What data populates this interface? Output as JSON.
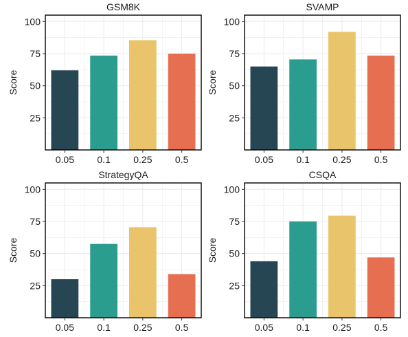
{
  "chart_data": [
    {
      "type": "bar",
      "title": "GSM8K",
      "ylabel": "Score",
      "xlabel": "",
      "categories": [
        "0.05",
        "0.1",
        "0.25",
        "0.5"
      ],
      "values": [
        62,
        73.5,
        85.5,
        75
      ],
      "ylim": [
        0,
        105
      ],
      "yticks": [
        "25",
        "50",
        "75",
        "100"
      ],
      "grid": true
    },
    {
      "type": "bar",
      "title": "SVAMP",
      "ylabel": "Score",
      "xlabel": "",
      "categories": [
        "0.05",
        "0.1",
        "0.25",
        "0.5"
      ],
      "values": [
        65,
        70.5,
        92,
        73.5
      ],
      "ylim": [
        0,
        105
      ],
      "yticks": [
        "25",
        "50",
        "75",
        "100"
      ],
      "grid": true
    },
    {
      "type": "bar",
      "title": "StrategyQA",
      "ylabel": "Score",
      "xlabel": "",
      "categories": [
        "0.05",
        "0.1",
        "0.25",
        "0.5"
      ],
      "values": [
        30,
        57.5,
        70.5,
        34
      ],
      "ylim": [
        0,
        105
      ],
      "yticks": [
        "25",
        "50",
        "75",
        "100"
      ],
      "grid": true
    },
    {
      "type": "bar",
      "title": "CSQA",
      "ylabel": "Score",
      "xlabel": "",
      "categories": [
        "0.05",
        "0.1",
        "0.25",
        "0.5"
      ],
      "values": [
        44,
        75,
        79.5,
        47
      ],
      "ylim": [
        0,
        105
      ],
      "yticks": [
        "25",
        "50",
        "75",
        "100"
      ],
      "grid": true
    }
  ],
  "colors": {
    "bars": [
      "#264653",
      "#2a9d8f",
      "#e9c46a",
      "#e76f51"
    ],
    "grid": "#ebebeb",
    "frame": "#000000"
  }
}
